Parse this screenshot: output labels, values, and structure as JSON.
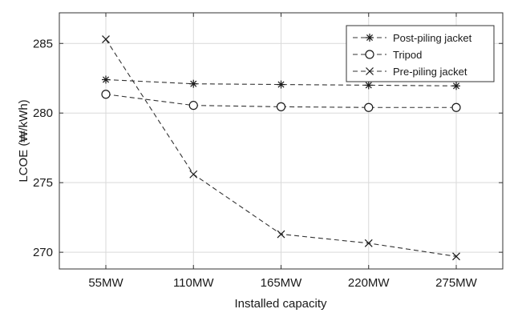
{
  "chart_data": {
    "type": "line",
    "title": "",
    "xlabel": "Installed capacity",
    "ylabel": "LCOE (₩/kWh)",
    "categories": [
      "55MW",
      "110MW",
      "165MW",
      "220MW",
      "275MW"
    ],
    "ylim": [
      268.8,
      287.2
    ],
    "yticks": [
      270,
      275,
      280,
      285
    ],
    "grid": true,
    "legend_position": "top-right",
    "series": [
      {
        "name": "Post-piling jacket",
        "marker": "asterisk",
        "values": [
          282.4,
          282.1,
          282.05,
          282.0,
          281.95
        ]
      },
      {
        "name": "Tripod",
        "marker": "circle",
        "values": [
          281.35,
          280.55,
          280.45,
          280.4,
          280.4
        ]
      },
      {
        "name": "Pre-piling jacket",
        "marker": "x",
        "values": [
          285.3,
          275.6,
          271.3,
          270.65,
          269.7
        ]
      }
    ]
  }
}
